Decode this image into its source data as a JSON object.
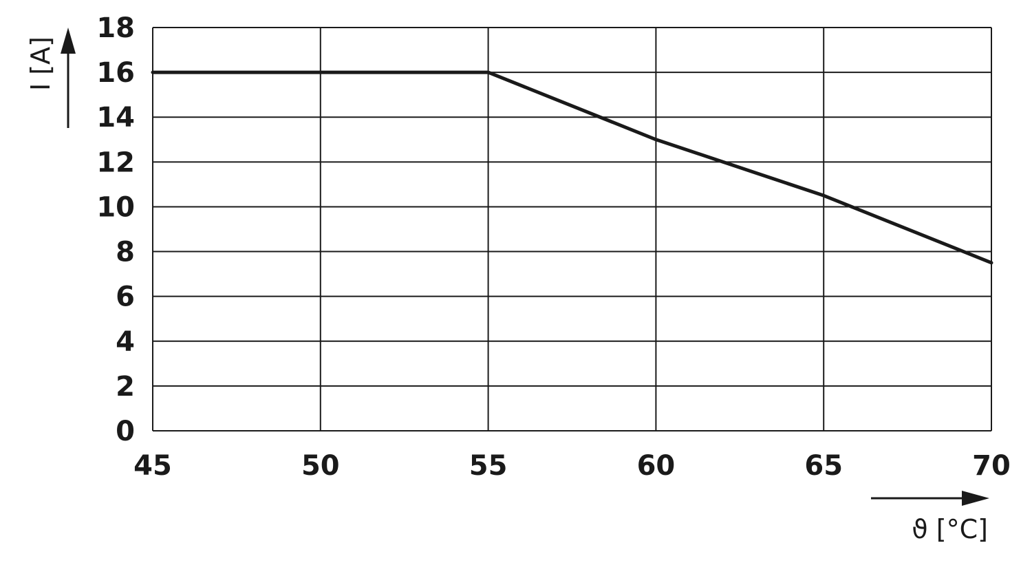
{
  "chart_data": {
    "type": "line",
    "title": "",
    "xlabel": "ϑ [°C]",
    "ylabel": "I [A]",
    "xlim": [
      45,
      70
    ],
    "ylim": [
      0,
      18
    ],
    "x_ticks": [
      "45",
      "50",
      "55",
      "60",
      "65",
      "70"
    ],
    "y_ticks": [
      "0",
      "2",
      "4",
      "6",
      "8",
      "10",
      "12",
      "14",
      "16",
      "18"
    ],
    "grid": true,
    "series": [
      {
        "color": "#1a1a1a",
        "x": [
          45,
          55,
          60,
          65,
          70
        ],
        "y": [
          16,
          16,
          13,
          10.5,
          7.5
        ]
      }
    ]
  }
}
